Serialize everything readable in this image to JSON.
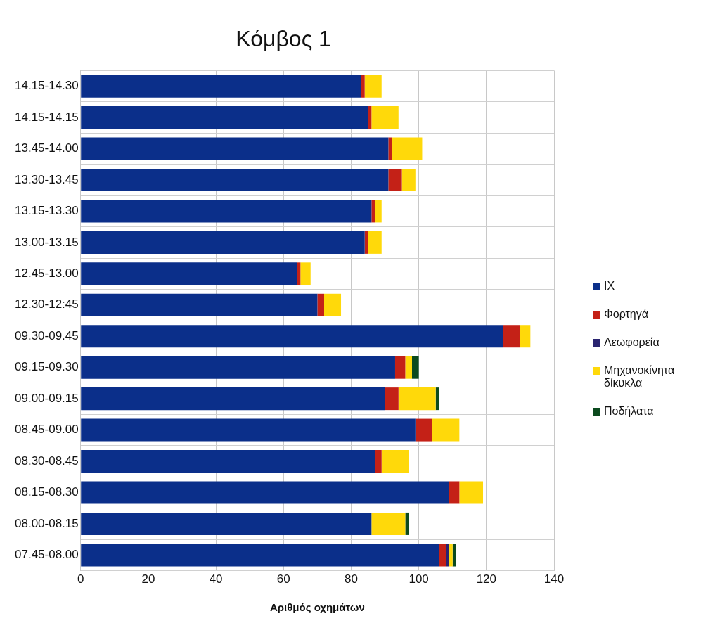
{
  "chart_data": {
    "type": "bar",
    "orientation": "horizontal",
    "stacked": true,
    "title": "Κόμβος 1",
    "xlabel": "Αριθμός οχημάτων",
    "categories": [
      "14.15-14.30",
      "14.15-14.15",
      "13.45-14.00",
      "13.30-13.45",
      "13.15-13.30",
      "13.00-13.15",
      "12.45-13.00",
      "12.30-12:45",
      "09.30-09.45",
      "09.15-09.30",
      "09.00-09.15",
      "08.45-09.00",
      "08.30-08.45",
      "08.15-08.30",
      "08.00-08.15",
      "07.45-08.00"
    ],
    "series": [
      {
        "name": "ΙΧ",
        "color": "#0b2f8a",
        "values": [
          83,
          85,
          91,
          91,
          86,
          84,
          64,
          70,
          125,
          93,
          90,
          99,
          87,
          109,
          86,
          106
        ]
      },
      {
        "name": "Φορτηγά",
        "color": "#c42117",
        "values": [
          1,
          1,
          1,
          4,
          1,
          1,
          1,
          2,
          5,
          3,
          4,
          5,
          2,
          3,
          0,
          2
        ]
      },
      {
        "name": "Λεωφορεία",
        "color": "#2a2470",
        "values": [
          0,
          0,
          0,
          0,
          0,
          0,
          0,
          0,
          0,
          0,
          0,
          0,
          0,
          0,
          0,
          1
        ]
      },
      {
        "name": "Μηχανοκίνητα δίκυκλα",
        "color": "#ffd90a",
        "values": [
          5,
          8,
          9,
          4,
          2,
          4,
          3,
          5,
          3,
          2,
          11,
          8,
          8,
          7,
          10,
          1
        ]
      },
      {
        "name": "Ποδήλατα",
        "color": "#0b4a1e",
        "values": [
          0,
          0,
          0,
          0,
          0,
          0,
          0,
          0,
          0,
          2,
          1,
          0,
          0,
          0,
          1,
          1
        ]
      }
    ],
    "xlim": [
      0,
      140
    ],
    "xticks": [
      0,
      20,
      40,
      60,
      80,
      100,
      120,
      140
    ],
    "grid": true,
    "legend": "right"
  }
}
